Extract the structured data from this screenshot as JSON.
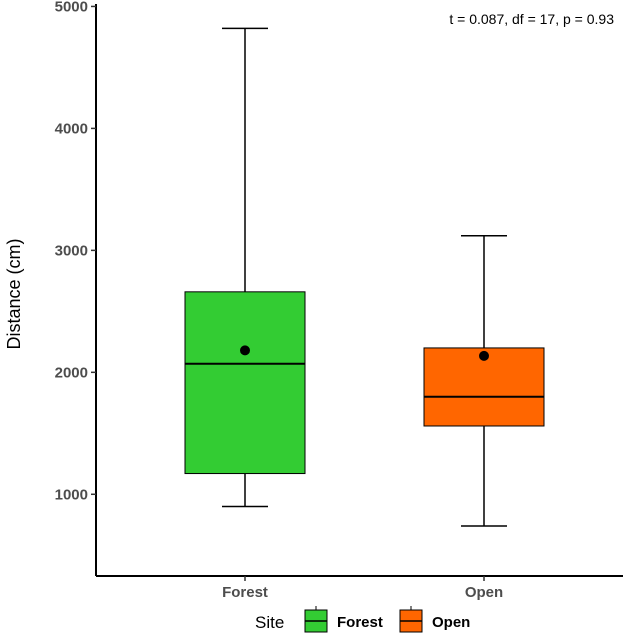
{
  "chart_data": {
    "type": "boxplot",
    "ylabel": "Distance (cm)",
    "xlabel": "",
    "annotation": "t = 0.087, df = 17, p = 0.93",
    "ylim": [
      330,
      5020
    ],
    "yticks": [
      1000,
      2000,
      3000,
      4000,
      5000
    ],
    "categories": [
      "Forest",
      "Open"
    ],
    "series": [
      {
        "category": "Forest",
        "min": 900,
        "q1": 1170,
        "median": 2070,
        "q3": 2660,
        "max": 4820,
        "mean": 2180,
        "color": "#33cc33"
      },
      {
        "category": "Open",
        "min": 740,
        "q1": 1560,
        "median": 1800,
        "q3": 2200,
        "max": 3120,
        "mean": 2135,
        "color": "#ff6600"
      }
    ],
    "legend": {
      "title": "Site",
      "position": "bottom",
      "items": [
        {
          "label": "Forest",
          "color": "#33cc33"
        },
        {
          "label": "Open",
          "color": "#ff6600"
        }
      ]
    },
    "grid": false
  }
}
